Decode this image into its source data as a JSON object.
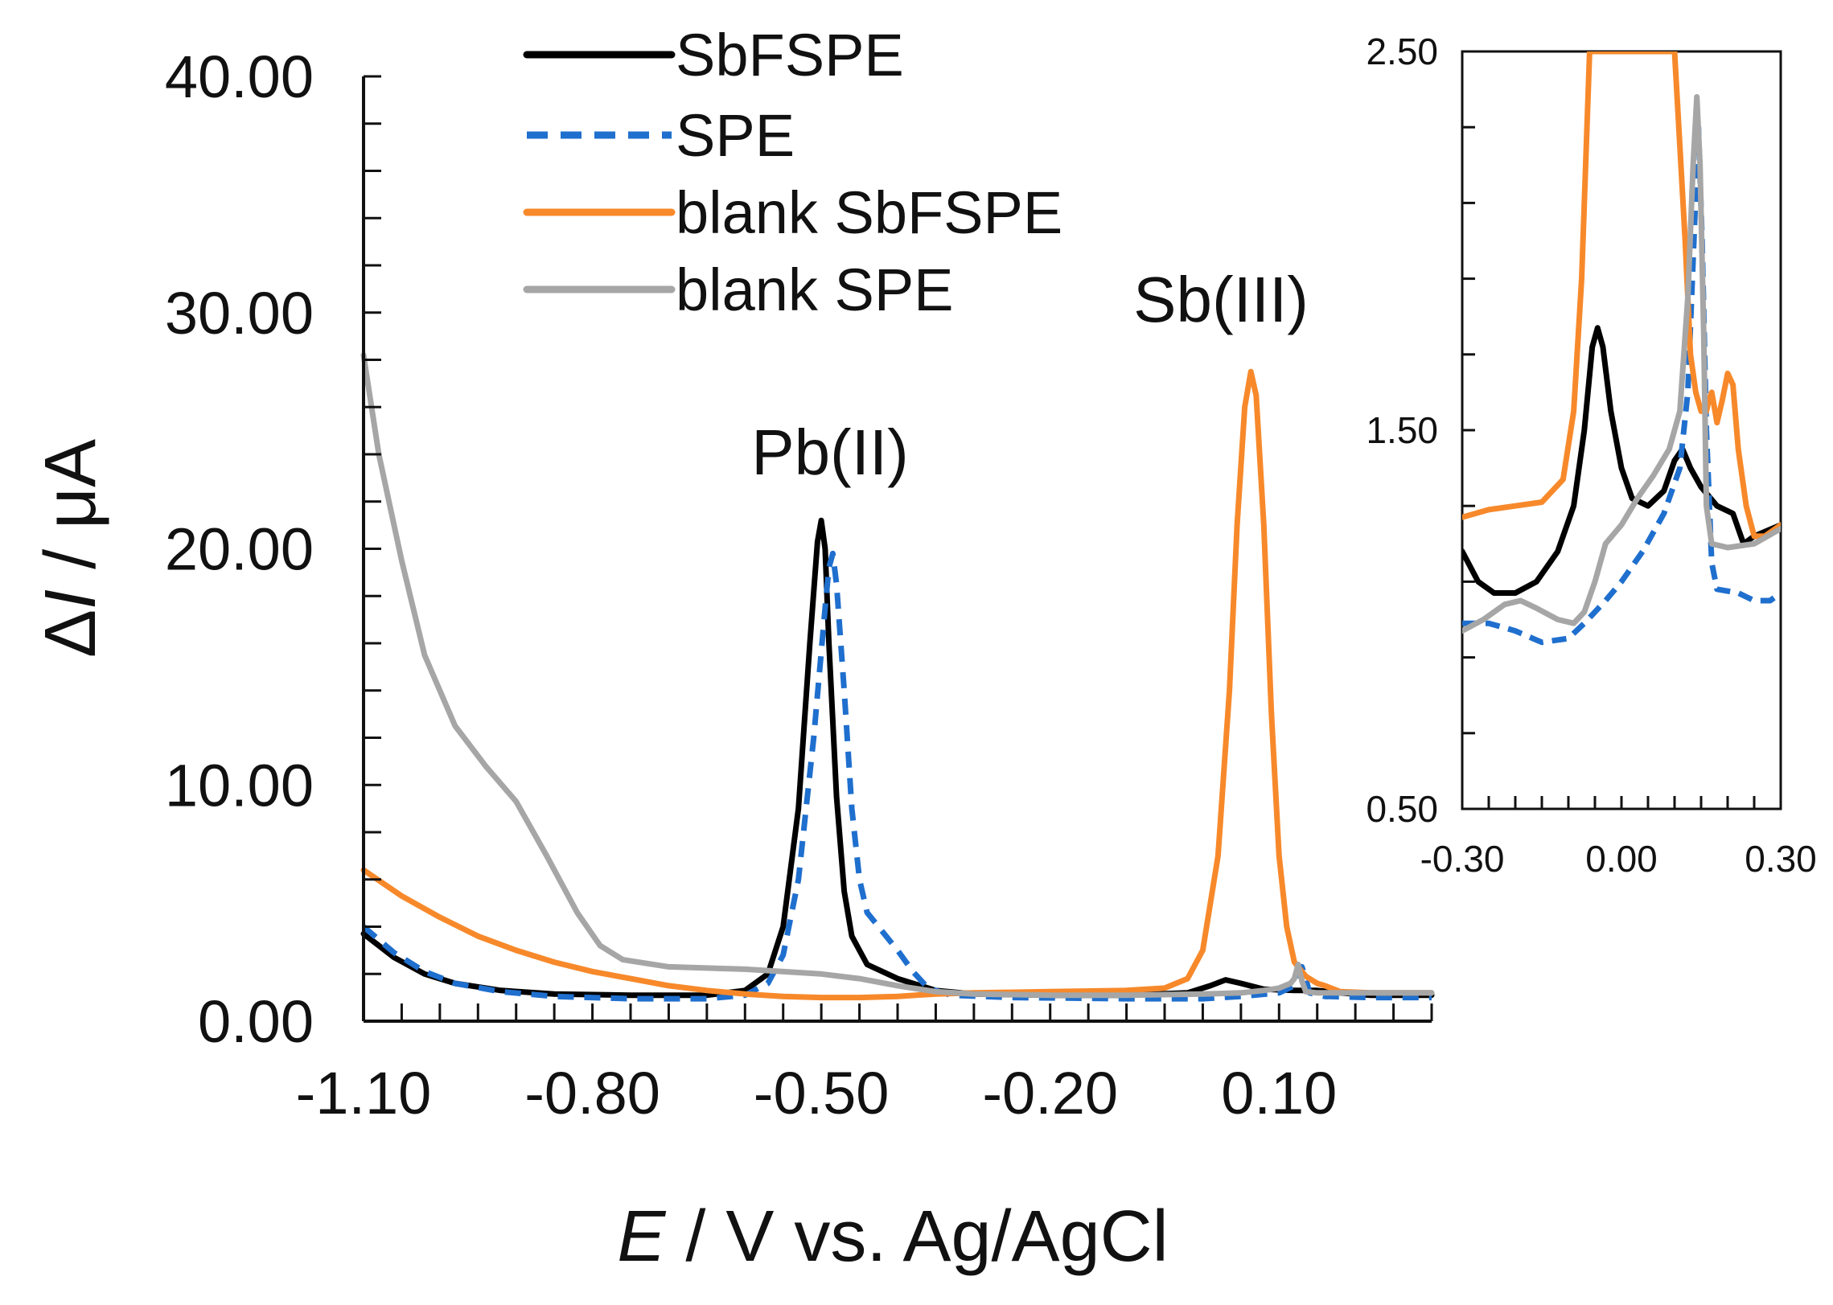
{
  "chart_data": [
    {
      "type": "line",
      "xlabel": {
        "italic": "E",
        "rest": " / V vs. Ag/AgCl"
      },
      "ylabel": {
        "prefix": "Δ",
        "italic": "I",
        "rest": " / μA"
      },
      "xlim": [
        -1.1,
        0.3
      ],
      "ylim": [
        0,
        40
      ],
      "xticks": [
        -1.1,
        -0.8,
        -0.5,
        -0.2,
        0.1
      ],
      "xtick_labels": [
        "-1.10",
        "-0.80",
        "-0.50",
        "-0.20",
        "0.10"
      ],
      "yticks": [
        0,
        10,
        20,
        30,
        40
      ],
      "ytick_labels": [
        "0.00",
        "10.00",
        "20.00",
        "30.00",
        "40.00"
      ],
      "minor_x_step": 0.05,
      "minor_y_step": 2,
      "grid": false,
      "legend_position": "top-center",
      "annotations": [
        {
          "text": "Pb(II)",
          "x": -0.485,
          "y": 23.0
        },
        {
          "text": "Sb(III)",
          "x": 0.05,
          "y": 29.5
        }
      ],
      "series": [
        {
          "name": "SbFSPE",
          "color": "#000000",
          "dash": "solid",
          "points": [
            [
              -1.1,
              3.7
            ],
            [
              -1.06,
              2.7
            ],
            [
              -1.02,
              2.0
            ],
            [
              -0.98,
              1.6
            ],
            [
              -0.92,
              1.3
            ],
            [
              -0.85,
              1.15
            ],
            [
              -0.75,
              1.1
            ],
            [
              -0.65,
              1.1
            ],
            [
              -0.6,
              1.3
            ],
            [
              -0.57,
              2.0
            ],
            [
              -0.55,
              4.0
            ],
            [
              -0.53,
              9.0
            ],
            [
              -0.515,
              16.0
            ],
            [
              -0.505,
              20.3
            ],
            [
              -0.5,
              21.2
            ],
            [
              -0.495,
              20.0
            ],
            [
              -0.49,
              16.0
            ],
            [
              -0.48,
              9.5
            ],
            [
              -0.47,
              5.5
            ],
            [
              -0.46,
              3.6
            ],
            [
              -0.44,
              2.4
            ],
            [
              -0.4,
              1.8
            ],
            [
              -0.35,
              1.3
            ],
            [
              -0.3,
              1.15
            ],
            [
              -0.2,
              1.1
            ],
            [
              -0.1,
              1.1
            ],
            [
              -0.02,
              1.2
            ],
            [
              0.01,
              1.5
            ],
            [
              0.03,
              1.75
            ],
            [
              0.05,
              1.6
            ],
            [
              0.08,
              1.35
            ],
            [
              0.12,
              1.3
            ],
            [
              0.15,
              1.3
            ],
            [
              0.18,
              1.2
            ],
            [
              0.22,
              1.1
            ],
            [
              0.3,
              1.1
            ]
          ]
        },
        {
          "name": "SPE",
          "color": "#1f6fce",
          "dash": "dashed",
          "points": [
            [
              -1.1,
              4.0
            ],
            [
              -1.06,
              2.9
            ],
            [
              -1.02,
              2.1
            ],
            [
              -0.98,
              1.6
            ],
            [
              -0.92,
              1.25
            ],
            [
              -0.85,
              1.05
            ],
            [
              -0.75,
              0.95
            ],
            [
              -0.65,
              0.95
            ],
            [
              -0.6,
              1.1
            ],
            [
              -0.57,
              1.6
            ],
            [
              -0.55,
              2.8
            ],
            [
              -0.53,
              6.0
            ],
            [
              -0.51,
              12.0
            ],
            [
              -0.495,
              17.5
            ],
            [
              -0.49,
              19.2
            ],
            [
              -0.485,
              19.8
            ],
            [
              -0.48,
              18.5
            ],
            [
              -0.47,
              14.0
            ],
            [
              -0.46,
              9.0
            ],
            [
              -0.45,
              6.0
            ],
            [
              -0.44,
              4.6
            ],
            [
              -0.42,
              3.8
            ],
            [
              -0.4,
              3.0
            ],
            [
              -0.38,
              2.1
            ],
            [
              -0.36,
              1.4
            ],
            [
              -0.33,
              1.1
            ],
            [
              -0.25,
              1.0
            ],
            [
              -0.1,
              0.95
            ],
            [
              0.0,
              0.95
            ],
            [
              0.05,
              1.05
            ],
            [
              0.1,
              1.2
            ],
            [
              0.12,
              1.5
            ],
            [
              0.13,
              2.3
            ],
            [
              0.135,
              1.8
            ],
            [
              0.14,
              1.2
            ],
            [
              0.16,
              1.05
            ],
            [
              0.22,
              1.0
            ],
            [
              0.3,
              1.0
            ]
          ]
        },
        {
          "name": "blank SbFSPE",
          "color": "#f7892b",
          "dash": "solid",
          "points": [
            [
              -1.1,
              6.4
            ],
            [
              -1.05,
              5.3
            ],
            [
              -1.0,
              4.4
            ],
            [
              -0.95,
              3.6
            ],
            [
              -0.9,
              3.0
            ],
            [
              -0.85,
              2.5
            ],
            [
              -0.8,
              2.1
            ],
            [
              -0.75,
              1.8
            ],
            [
              -0.7,
              1.5
            ],
            [
              -0.65,
              1.3
            ],
            [
              -0.6,
              1.15
            ],
            [
              -0.55,
              1.05
            ],
            [
              -0.5,
              1.0
            ],
            [
              -0.45,
              1.0
            ],
            [
              -0.4,
              1.05
            ],
            [
              -0.35,
              1.15
            ],
            [
              -0.3,
              1.2
            ],
            [
              -0.2,
              1.25
            ],
            [
              -0.1,
              1.3
            ],
            [
              -0.05,
              1.4
            ],
            [
              -0.02,
              1.8
            ],
            [
              0.0,
              3.0
            ],
            [
              0.02,
              7.0
            ],
            [
              0.035,
              14.0
            ],
            [
              0.045,
              21.0
            ],
            [
              0.055,
              26.0
            ],
            [
              0.063,
              27.5
            ],
            [
              0.07,
              26.5
            ],
            [
              0.08,
              21.0
            ],
            [
              0.09,
              13.0
            ],
            [
              0.1,
              7.0
            ],
            [
              0.11,
              4.0
            ],
            [
              0.12,
              2.5
            ],
            [
              0.135,
              1.9
            ],
            [
              0.15,
              1.6
            ],
            [
              0.16,
              1.5
            ],
            [
              0.18,
              1.25
            ],
            [
              0.22,
              1.2
            ],
            [
              0.3,
              1.2
            ]
          ]
        },
        {
          "name": "blank SPE",
          "color": "#a6a6a6",
          "dash": "solid",
          "points": [
            [
              -1.1,
              28.2
            ],
            [
              -1.08,
              24.0
            ],
            [
              -1.05,
              19.5
            ],
            [
              -1.02,
              15.5
            ],
            [
              -0.98,
              12.5
            ],
            [
              -0.94,
              10.8
            ],
            [
              -0.9,
              9.3
            ],
            [
              -0.86,
              7.0
            ],
            [
              -0.82,
              4.6
            ],
            [
              -0.79,
              3.2
            ],
            [
              -0.76,
              2.6
            ],
            [
              -0.7,
              2.3
            ],
            [
              -0.6,
              2.2
            ],
            [
              -0.5,
              2.0
            ],
            [
              -0.45,
              1.8
            ],
            [
              -0.4,
              1.5
            ],
            [
              -0.35,
              1.25
            ],
            [
              -0.3,
              1.15
            ],
            [
              -0.2,
              1.1
            ],
            [
              -0.1,
              1.1
            ],
            [
              0.0,
              1.15
            ],
            [
              0.05,
              1.2
            ],
            [
              0.08,
              1.3
            ],
            [
              0.1,
              1.4
            ],
            [
              0.115,
              1.6
            ],
            [
              0.12,
              1.8
            ],
            [
              0.125,
              2.4
            ],
            [
              0.13,
              1.7
            ],
            [
              0.135,
              1.25
            ],
            [
              0.15,
              1.2
            ],
            [
              0.2,
              1.2
            ],
            [
              0.3,
              1.2
            ]
          ]
        }
      ]
    },
    {
      "type": "line",
      "inset": true,
      "xlim": [
        -0.3,
        0.3
      ],
      "ylim": [
        0.5,
        2.5
      ],
      "xticks": [
        -0.3,
        0.0,
        0.3
      ],
      "xtick_labels": [
        "-0.30",
        "0.00",
        "0.30"
      ],
      "yticks": [
        0.5,
        1.5,
        2.5
      ],
      "ytick_labels": [
        "0.50",
        "1.50",
        "2.50"
      ],
      "minor_x_step": 0.05,
      "minor_y_step": 0.2,
      "grid": false,
      "series": [
        {
          "name": "SbFSPE",
          "color": "#000000",
          "dash": "solid",
          "points": [
            [
              -0.3,
              1.18
            ],
            [
              -0.27,
              1.1
            ],
            [
              -0.24,
              1.07
            ],
            [
              -0.2,
              1.07
            ],
            [
              -0.16,
              1.1
            ],
            [
              -0.12,
              1.18
            ],
            [
              -0.09,
              1.3
            ],
            [
              -0.07,
              1.5
            ],
            [
              -0.055,
              1.72
            ],
            [
              -0.045,
              1.77
            ],
            [
              -0.035,
              1.72
            ],
            [
              -0.02,
              1.55
            ],
            [
              0.0,
              1.4
            ],
            [
              0.02,
              1.32
            ],
            [
              0.05,
              1.3
            ],
            [
              0.08,
              1.34
            ],
            [
              0.1,
              1.42
            ],
            [
              0.115,
              1.45
            ],
            [
              0.13,
              1.4
            ],
            [
              0.15,
              1.35
            ],
            [
              0.18,
              1.3
            ],
            [
              0.21,
              1.28
            ],
            [
              0.23,
              1.2
            ],
            [
              0.25,
              1.22
            ],
            [
              0.3,
              1.25
            ]
          ]
        },
        {
          "name": "SPE",
          "color": "#1f6fce",
          "dash": "dashed",
          "points": [
            [
              -0.3,
              0.99
            ],
            [
              -0.25,
              0.99
            ],
            [
              -0.2,
              0.97
            ],
            [
              -0.15,
              0.94
            ],
            [
              -0.1,
              0.95
            ],
            [
              -0.07,
              0.99
            ],
            [
              -0.03,
              1.05
            ],
            [
              0.0,
              1.1
            ],
            [
              0.04,
              1.18
            ],
            [
              0.08,
              1.28
            ],
            [
              0.11,
              1.4
            ],
            [
              0.125,
              1.6
            ],
            [
              0.135,
              1.95
            ],
            [
              0.145,
              2.3
            ],
            [
              0.152,
              2.0
            ],
            [
              0.16,
              1.5
            ],
            [
              0.17,
              1.15
            ],
            [
              0.18,
              1.08
            ],
            [
              0.22,
              1.07
            ],
            [
              0.25,
              1.05
            ],
            [
              0.28,
              1.05
            ],
            [
              0.3,
              1.07
            ]
          ]
        },
        {
          "name": "blank SbFSPE",
          "color": "#f7892b",
          "dash": "solid",
          "points": [
            [
              -0.3,
              1.27
            ],
            [
              -0.25,
              1.29
            ],
            [
              -0.2,
              1.3
            ],
            [
              -0.15,
              1.31
            ],
            [
              -0.11,
              1.37
            ],
            [
              -0.09,
              1.55
            ],
            [
              -0.075,
              1.9
            ],
            [
              -0.065,
              2.3
            ],
            [
              -0.06,
              2.5
            ],
            [
              0.1,
              2.5
            ],
            [
              0.12,
              2.0
            ],
            [
              0.13,
              1.7
            ],
            [
              0.14,
              1.6
            ],
            [
              0.15,
              1.55
            ],
            [
              0.16,
              1.55
            ],
            [
              0.165,
              1.58
            ],
            [
              0.17,
              1.6
            ],
            [
              0.18,
              1.52
            ],
            [
              0.19,
              1.58
            ],
            [
              0.2,
              1.65
            ],
            [
              0.21,
              1.62
            ],
            [
              0.22,
              1.45
            ],
            [
              0.235,
              1.3
            ],
            [
              0.25,
              1.22
            ],
            [
              0.27,
              1.22
            ],
            [
              0.3,
              1.25
            ]
          ]
        },
        {
          "name": "blank SPE",
          "color": "#a6a6a6",
          "dash": "solid",
          "points": [
            [
              -0.3,
              0.97
            ],
            [
              -0.26,
              1.0
            ],
            [
              -0.22,
              1.04
            ],
            [
              -0.19,
              1.05
            ],
            [
              -0.16,
              1.03
            ],
            [
              -0.12,
              1.0
            ],
            [
              -0.09,
              0.99
            ],
            [
              -0.07,
              1.02
            ],
            [
              -0.05,
              1.1
            ],
            [
              -0.03,
              1.2
            ],
            [
              0.0,
              1.25
            ],
            [
              0.03,
              1.32
            ],
            [
              0.06,
              1.38
            ],
            [
              0.09,
              1.45
            ],
            [
              0.11,
              1.55
            ],
            [
              0.125,
              1.85
            ],
            [
              0.135,
              2.2
            ],
            [
              0.142,
              2.38
            ],
            [
              0.148,
              2.2
            ],
            [
              0.155,
              1.75
            ],
            [
              0.16,
              1.3
            ],
            [
              0.17,
              1.2
            ],
            [
              0.2,
              1.19
            ],
            [
              0.25,
              1.2
            ],
            [
              0.3,
              1.24
            ]
          ]
        }
      ]
    }
  ]
}
